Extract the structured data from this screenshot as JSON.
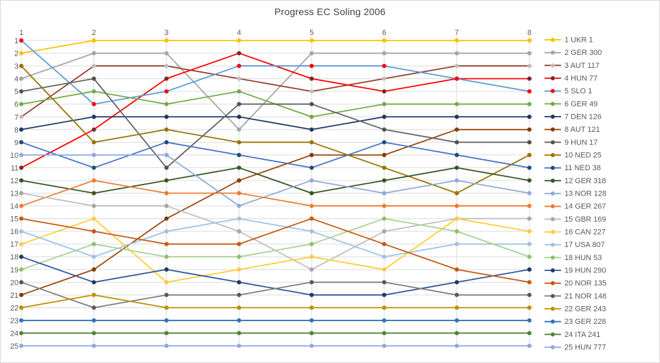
{
  "chart_data": {
    "type": "line",
    "title": "Progress EC Soling 2006",
    "subtitle": "",
    "xlabel": "",
    "ylabel": "",
    "x_axis_position": "top",
    "x_ticks": [
      "1",
      "2",
      "3",
      "4",
      "5",
      "6",
      "7",
      "8"
    ],
    "y_ticks": [
      "1",
      "2",
      "3",
      "4",
      "5",
      "6",
      "7",
      "8",
      "9",
      "10",
      "11",
      "12",
      "13",
      "14",
      "15",
      "16",
      "17",
      "18",
      "19",
      "20",
      "21",
      "22",
      "23",
      "24",
      "25"
    ],
    "y_axis_reversed": true,
    "ylim": [
      1,
      25
    ],
    "grid": true,
    "gridline_color": "#dcdcdc",
    "axis_label_color": "#595959",
    "title_color": "#404040",
    "legend_position": "right",
    "series": [
      {
        "name": "1 UKR 1",
        "line_color": "#FFC000",
        "marker_color": "#FFC000",
        "positions": [
          2,
          1,
          1,
          1,
          1,
          1,
          1,
          1
        ]
      },
      {
        "name": "2 GER 300",
        "line_color": "#A5A5A5",
        "marker_color": "#A5A5A5",
        "positions": [
          4,
          2,
          2,
          8,
          2,
          2,
          2,
          2
        ]
      },
      {
        "name": "3 AUT 117",
        "line_color": "#97402B",
        "marker_color": "#BFBFBF",
        "positions": [
          7,
          3,
          3,
          4,
          5,
          4,
          3,
          3
        ]
      },
      {
        "name": "4 HUN 77",
        "line_color": "#FF0000",
        "marker_color": "#7B2927",
        "positions": [
          11,
          8,
          4,
          2,
          4,
          5,
          4,
          4
        ]
      },
      {
        "name": "5 SLO 1",
        "line_color": "#5B9BD5",
        "marker_color": "#FF0000",
        "positions": [
          1,
          6,
          5,
          3,
          3,
          3,
          4,
          5
        ]
      },
      {
        "name": "6 GER 49",
        "line_color": "#70AD47",
        "marker_color": "#70AD47",
        "positions": [
          6,
          5,
          6,
          5,
          7,
          6,
          6,
          6
        ]
      },
      {
        "name": "7 DEN 126",
        "line_color": "#1F3864",
        "marker_color": "#1F3864",
        "positions": [
          8,
          7,
          7,
          7,
          8,
          7,
          7,
          7
        ]
      },
      {
        "name": "8 AUT 121",
        "line_color": "#9E480E",
        "marker_color": "#833C00",
        "positions": [
          21,
          19,
          15,
          12,
          10,
          10,
          8,
          8
        ]
      },
      {
        "name": "9 HUN 17",
        "line_color": "#636363",
        "marker_color": "#525252",
        "positions": [
          5,
          4,
          11,
          6,
          6,
          8,
          9,
          9
        ]
      },
      {
        "name": "10 NED 25",
        "line_color": "#997300",
        "marker_color": "#997300",
        "positions": [
          3,
          9,
          8,
          9,
          9,
          11,
          13,
          10
        ]
      },
      {
        "name": "11 NED 38",
        "line_color": "#4472C4",
        "marker_color": "#1F4E79",
        "positions": [
          9,
          11,
          9,
          10,
          11,
          9,
          10,
          11
        ]
      },
      {
        "name": "12 GER 318",
        "line_color": "#375623",
        "marker_color": "#375623",
        "positions": [
          12,
          13,
          12,
          11,
          13,
          12,
          11,
          12
        ]
      },
      {
        "name": "13 NOR 128",
        "line_color": "#8EAADB",
        "marker_color": "#8EAADB",
        "positions": [
          10,
          10,
          10,
          14,
          12,
          13,
          12,
          13
        ]
      },
      {
        "name": "14 GER 267",
        "line_color": "#ED7D31",
        "marker_color": "#ED7D31",
        "positions": [
          14,
          12,
          13,
          13,
          14,
          14,
          14,
          14
        ]
      },
      {
        "name": "15 GBR 169",
        "line_color": "#BFBFBF",
        "marker_color": "#A6A6A6",
        "positions": [
          13,
          14,
          14,
          16,
          19,
          16,
          15,
          15
        ]
      },
      {
        "name": "16 CAN 227",
        "line_color": "#FFCD33",
        "marker_color": "#FFC94D",
        "positions": [
          17,
          15,
          20,
          19,
          18,
          19,
          15,
          16
        ]
      },
      {
        "name": "17 USA 807",
        "line_color": "#9DC3E6",
        "marker_color": "#9DC3E6",
        "positions": [
          16,
          18,
          16,
          15,
          16,
          18,
          17,
          17
        ]
      },
      {
        "name": "18 HUN 53",
        "line_color": "#A9D18E",
        "marker_color": "#8CC168",
        "positions": [
          19,
          17,
          18,
          18,
          17,
          15,
          16,
          18
        ]
      },
      {
        "name": "19 HUN 290",
        "line_color": "#2F5597",
        "marker_color": "#203864",
        "positions": [
          18,
          20,
          19,
          20,
          21,
          21,
          20,
          19
        ]
      },
      {
        "name": "20 NOR 135",
        "line_color": "#C55A11",
        "marker_color": "#C55A11",
        "positions": [
          15,
          16,
          17,
          17,
          15,
          17,
          19,
          20
        ]
      },
      {
        "name": "21 NOR 148",
        "line_color": "#7F7F7F",
        "marker_color": "#595959",
        "positions": [
          20,
          22,
          21,
          21,
          20,
          20,
          21,
          21
        ]
      },
      {
        "name": "22 GER 243",
        "line_color": "#BF8F00",
        "marker_color": "#BF8F00",
        "positions": [
          22,
          21,
          22,
          22,
          22,
          22,
          22,
          22
        ]
      },
      {
        "name": "23 GER 228",
        "line_color": "#2E75B6",
        "marker_color": "#2E75B6",
        "positions": [
          23,
          23,
          23,
          23,
          23,
          23,
          23,
          23
        ]
      },
      {
        "name": "24 ITA 241",
        "line_color": "#548235",
        "marker_color": "#548235",
        "positions": [
          24,
          24,
          24,
          24,
          24,
          24,
          24,
          24
        ]
      },
      {
        "name": "25 HUN 777",
        "line_color": "#8FAADC",
        "marker_color": "#8FAADC",
        "positions": [
          25,
          25,
          25,
          25,
          25,
          25,
          25,
          25
        ]
      }
    ]
  }
}
